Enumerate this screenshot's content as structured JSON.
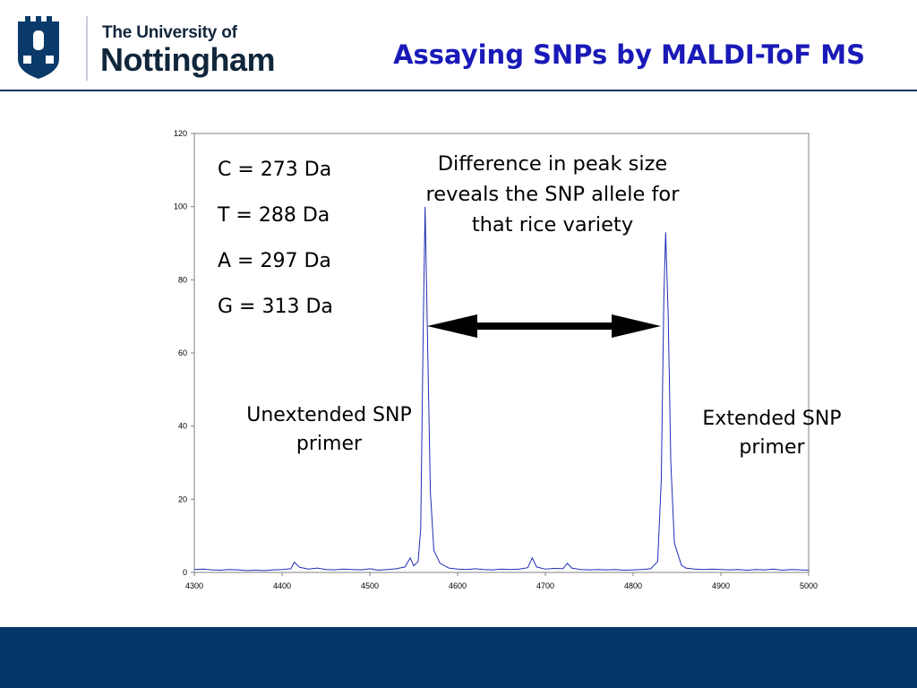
{
  "header": {
    "logo_line1": "The University of",
    "logo_line2": "Nottingham",
    "title": "Assaying SNPs by MALDI-ToF MS"
  },
  "masses": [
    {
      "label": "C = 273 Da"
    },
    {
      "label": "T = 288 Da"
    },
    {
      "label": "A = 297 Da"
    },
    {
      "label": "G = 313 Da"
    }
  ],
  "annotations": {
    "difference": "Difference in peak size reveals the SNP allele for that rice variety",
    "unextended": "Unextended SNP primer",
    "extended": "Extended SNP primer"
  },
  "colors": {
    "brand_navy": "#043767",
    "title_blue": "#1a1ab8",
    "trace_blue": "#1f2db3"
  },
  "chart_data": {
    "type": "line",
    "title": "",
    "xlabel": "",
    "ylabel": "",
    "xlim": [
      4300,
      5000
    ],
    "ylim": [
      0,
      120
    ],
    "x_ticks": [
      4300,
      4400,
      4500,
      4600,
      4700,
      4800,
      4900,
      5000
    ],
    "y_ticks": [
      0,
      20,
      40,
      60,
      80,
      100,
      120
    ],
    "grid": false,
    "series": [
      {
        "x": [
          4300,
          4310,
          4320,
          4330,
          4340,
          4350,
          4360,
          4370,
          4380,
          4390,
          4400,
          4410,
          4414,
          4420,
          4430,
          4440,
          4450,
          4460,
          4470,
          4480,
          4490,
          4500,
          4510,
          4520,
          4530,
          4540,
          4546,
          4550,
          4555,
          4558,
          4561,
          4563,
          4566,
          4569,
          4573,
          4580,
          4590,
          4600,
          4610,
          4620,
          4630,
          4640,
          4650,
          4660,
          4670,
          4680,
          4685,
          4690,
          4700,
          4710,
          4720,
          4725,
          4730,
          4740,
          4750,
          4760,
          4770,
          4780,
          4790,
          4800,
          4810,
          4820,
          4828,
          4832,
          4835,
          4837,
          4840,
          4843,
          4847,
          4855,
          4860,
          4870,
          4880,
          4890,
          4900,
          4910,
          4920,
          4930,
          4940,
          4950,
          4960,
          4970,
          4980,
          4990,
          5000
        ],
        "values": [
          0.8,
          0.9,
          0.7,
          0.6,
          0.8,
          0.7,
          0.5,
          0.6,
          0.5,
          0.7,
          0.8,
          1.0,
          2.8,
          1.4,
          0.9,
          1.2,
          0.8,
          0.7,
          0.9,
          0.8,
          0.7,
          1.0,
          0.6,
          0.8,
          1.0,
          1.5,
          4.0,
          1.8,
          3.0,
          12,
          70,
          100,
          60,
          22,
          6,
          2.5,
          1.2,
          0.9,
          0.8,
          1.0,
          0.8,
          0.7,
          0.9,
          0.8,
          0.9,
          1.3,
          4.0,
          1.5,
          0.9,
          1.1,
          1.0,
          2.5,
          1.2,
          0.8,
          0.7,
          0.8,
          0.7,
          0.8,
          0.6,
          0.7,
          0.8,
          1.0,
          3.0,
          25,
          75,
          93,
          70,
          30,
          8,
          2.0,
          1.2,
          0.9,
          0.8,
          0.9,
          0.8,
          0.7,
          0.8,
          0.6,
          0.8,
          0.7,
          0.9,
          0.6,
          0.8,
          0.7,
          0.6
        ]
      }
    ]
  }
}
